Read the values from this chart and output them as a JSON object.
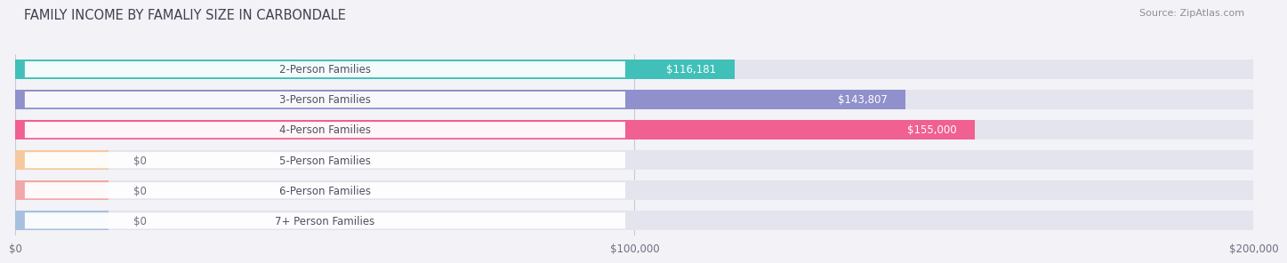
{
  "title": "FAMILY INCOME BY FAMALIY SIZE IN CARBONDALE",
  "source": "Source: ZipAtlas.com",
  "categories": [
    "2-Person Families",
    "3-Person Families",
    "4-Person Families",
    "5-Person Families",
    "6-Person Families",
    "7+ Person Families"
  ],
  "values": [
    116181,
    143807,
    155000,
    0,
    0,
    0
  ],
  "bar_colors": [
    "#40c0b8",
    "#9090cc",
    "#f06090",
    "#f5c8a0",
    "#f0a8a8",
    "#a8c0e0"
  ],
  "value_labels": [
    "$116,181",
    "$143,807",
    "$155,000",
    "$0",
    "$0",
    "$0"
  ],
  "xmax": 200000,
  "xticks": [
    0,
    100000,
    200000
  ],
  "xtick_labels": [
    "$0",
    "$100,000",
    "$200,000"
  ],
  "background_color": "#f2f2f7",
  "bar_bg_color": "#e4e4ee",
  "label_box_color": "#ffffff",
  "title_fontsize": 10.5,
  "source_fontsize": 8,
  "label_fontsize": 8.5,
  "value_fontsize": 8.5,
  "bar_height": 0.65,
  "zero_bar_width": 15000
}
